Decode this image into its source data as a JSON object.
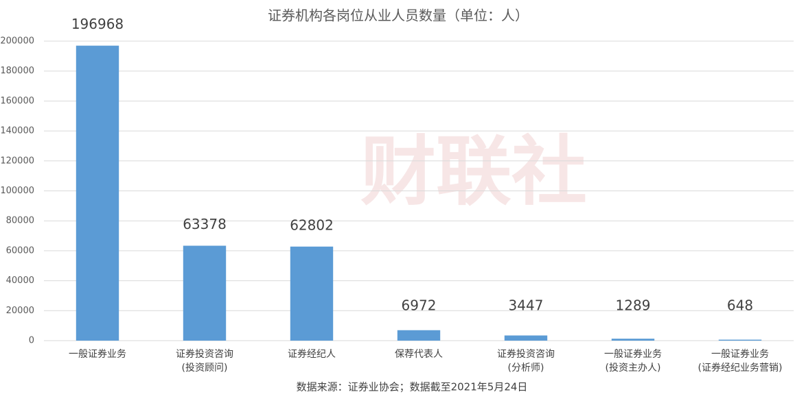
{
  "chart_data": {
    "type": "bar",
    "title": "证券机构各岗位从业人员数量（单位：人）",
    "categories": [
      "一般证券业务",
      "证券投资咨询\n(投资顾问)",
      "证券经纪人",
      "保荐代表人",
      "证券投资咨询\n(分析师)",
      "一般证券业务\n(投资主办人)",
      "一般证券业务\n(证券经纪业务营销)"
    ],
    "values": [
      196968,
      63378,
      62802,
      6972,
      3447,
      1289,
      648
    ],
    "color": "#5b9bd5",
    "ylim": [
      0,
      200000
    ],
    "yticks": [
      0,
      20000,
      40000,
      60000,
      80000,
      100000,
      120000,
      140000,
      160000,
      180000,
      200000
    ],
    "grid": true,
    "watermark": "财联社",
    "source": "数据来源：证券业协会；数据截至2021年5月24日"
  }
}
